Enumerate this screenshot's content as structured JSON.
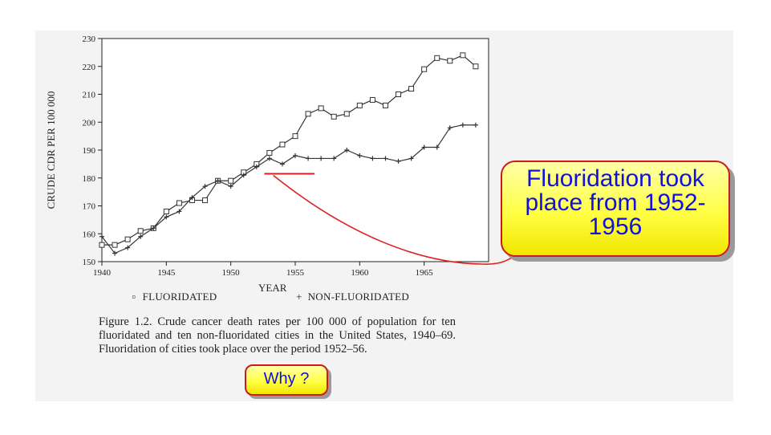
{
  "chart_data": {
    "type": "line",
    "title": "",
    "xlabel": "YEAR",
    "ylabel": "CRUDE CDR PER 100 000",
    "xlim": [
      1940,
      1970
    ],
    "ylim": [
      150,
      230
    ],
    "x_ticks": [
      1940,
      1945,
      1950,
      1955,
      1960,
      1965
    ],
    "y_ticks": [
      150,
      160,
      170,
      180,
      190,
      200,
      210,
      220,
      230
    ],
    "grid": false,
    "legend_placement": "bottom",
    "series": [
      {
        "name": "FLUORIDATED",
        "marker": "square",
        "x": [
          1940,
          1941,
          1942,
          1943,
          1944,
          1945,
          1946,
          1947,
          1948,
          1949,
          1950,
          1951,
          1952,
          1953,
          1954,
          1955,
          1956,
          1957,
          1958,
          1959,
          1960,
          1961,
          1962,
          1963,
          1964,
          1965,
          1966,
          1967,
          1968,
          1969
        ],
        "values": [
          156,
          156,
          158,
          161,
          162,
          168,
          171,
          172,
          172,
          179,
          179,
          182,
          185,
          189,
          192,
          195,
          203,
          205,
          202,
          203,
          206,
          208,
          206,
          210,
          212,
          219,
          223,
          222,
          224,
          220
        ]
      },
      {
        "name": "NON-FLUORIDATED",
        "marker": "plus",
        "x": [
          1940,
          1941,
          1942,
          1943,
          1944,
          1945,
          1946,
          1947,
          1948,
          1949,
          1950,
          1951,
          1952,
          1953,
          1954,
          1955,
          1956,
          1957,
          1958,
          1959,
          1960,
          1961,
          1962,
          1963,
          1964,
          1965,
          1966,
          1967,
          1968,
          1969
        ],
        "values": [
          159,
          153,
          155,
          159,
          162,
          166,
          168,
          173,
          177,
          179,
          177,
          181,
          184,
          187,
          185,
          188,
          187,
          187,
          187,
          190,
          188,
          187,
          187,
          186,
          187,
          191,
          191,
          198,
          199,
          199
        ]
      }
    ],
    "annotations": [
      {
        "type": "hline",
        "y": 181.5,
        "x_range": [
          1952.6,
          1956.5
        ],
        "color": "#e02020"
      }
    ]
  },
  "legend": {
    "fluoridated_symbol": "▫",
    "fluoridated": "FLUORIDATED",
    "non_fluoridated_symbol": "+",
    "non_fluoridated": "NON-FLUORIDATED"
  },
  "caption": "Figure 1.2. Crude cancer death rates per 100 000 of population for ten fluoridated and ten non-fluoridated cities in the United States, 1940–69. Fluoridation of cities took place over the period 1952–56.",
  "callouts": {
    "main": "Fluoridation took place from 1952-1956",
    "why": "Why ?"
  },
  "colors": {
    "callout_text": "#1010e0",
    "callout_border": "#cc1a1a",
    "callout_fill": "#ffff44",
    "annotation": "#e02020"
  }
}
